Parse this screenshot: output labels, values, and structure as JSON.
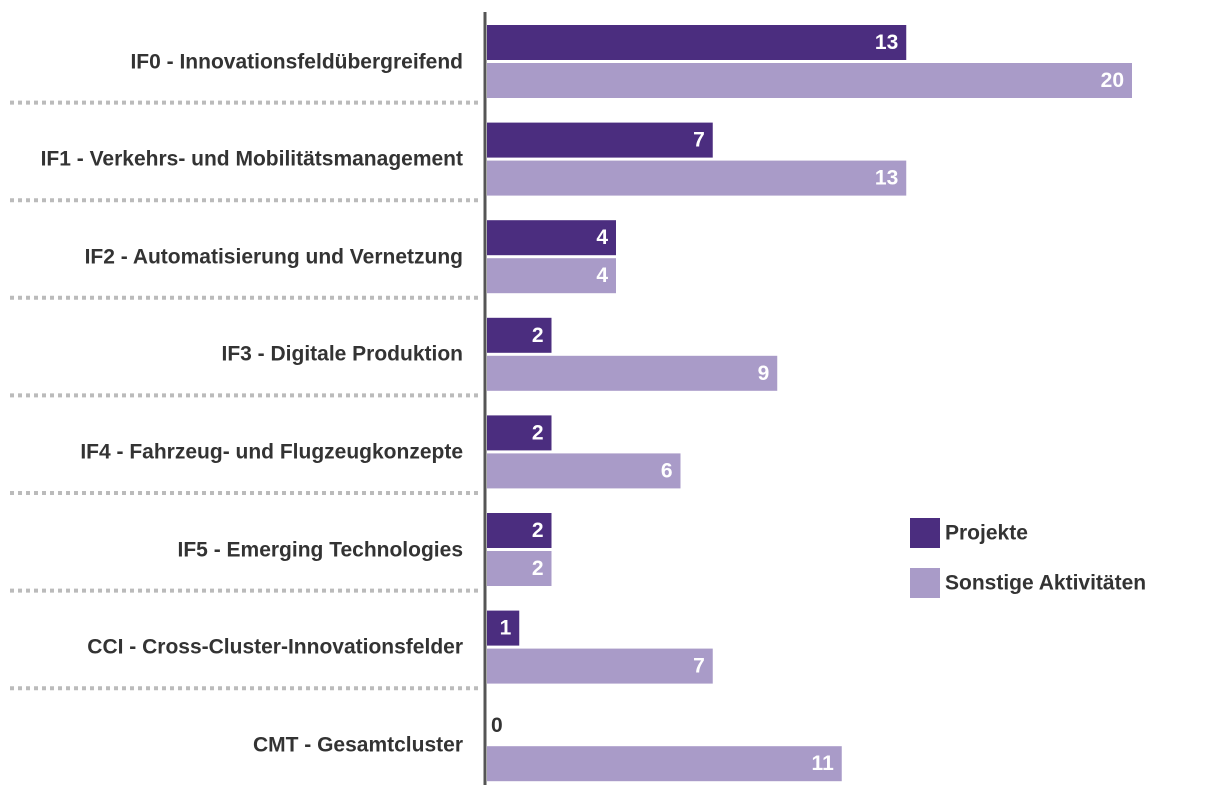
{
  "chart_data": {
    "type": "barh",
    "categories": [
      "IF0 - Innovationsfeldübergreifend",
      "IF1 - Verkehrs- und Mobilitätsmanagement",
      "IF2 - Automatisierung und Vernetzung",
      "IF3 - Digitale Produktion",
      "IF4 - Fahrzeug- und Flugzeugkonzepte",
      "IF5 - Emerging Technologies",
      "CCI - Cross-Cluster-Innovationsfelder",
      "CMT - Gesamtcluster"
    ],
    "series": [
      {
        "name": "Projekte",
        "color": "#4b2d7f",
        "values": [
          13,
          7,
          4,
          2,
          2,
          2,
          1,
          0
        ]
      },
      {
        "name": "Sonstige Aktivitäten",
        "color": "#a99bc8",
        "values": [
          20,
          13,
          4,
          9,
          6,
          2,
          7,
          11
        ]
      }
    ],
    "xlim": [
      0,
      20
    ]
  }
}
